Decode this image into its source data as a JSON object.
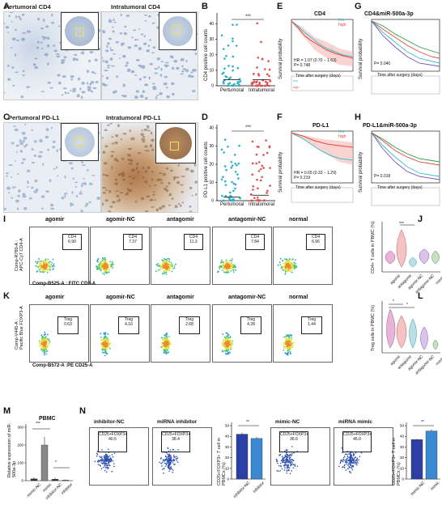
{
  "panels": {
    "A": {
      "letter": "A",
      "titles": [
        "Pertumoral CD4",
        "Intratumoral CD4"
      ]
    },
    "B": {
      "letter": "B",
      "ylabel": "CD4 positive cell counts",
      "xcats": [
        "Pertumoral",
        "Intratumoral"
      ],
      "sig": "***"
    },
    "C": {
      "letter": "C",
      "titles": [
        "Pertumoral PD-L1",
        "Intratumoral PD-L1"
      ]
    },
    "D": {
      "letter": "D",
      "ylabel": "PD-L1 positive cell counts",
      "xcats": [
        "Pertumoral",
        "Intratumoral"
      ],
      "sig": "***"
    },
    "E": {
      "letter": "E",
      "title": "CD4",
      "ylabel": "Survival probability",
      "xlabel": "Time after surgery (days)",
      "legend": [
        "low",
        "high"
      ],
      "hr": "HR = 1.07  (0.70 − 1.63)",
      "p": "P= 0.748"
    },
    "F": {
      "letter": "F",
      "title": "PD-L1",
      "ylabel": "Survival probability",
      "xlabel": "Time after surgery (days)",
      "legend": [
        "low",
        "high"
      ],
      "hr": "HR = 0.65  (0.33 − 1.29)",
      "p": "P= 0.219"
    },
    "G": {
      "letter": "G",
      "title": "CD4&miR-500a-3p",
      "ylabel": "Survival probability",
      "xlabel": "Time after surgery (days)",
      "p": "P= 0.040"
    },
    "H": {
      "letter": "H",
      "title": "PD-L1&miR-500a-3p",
      "ylabel": "Survival probability",
      "xlabel": "Time after surgery (days)",
      "p": "P= 0.018"
    },
    "I": {
      "letter": "I",
      "groups": [
        "agomir",
        "agomir-NC",
        "antagomir",
        "antagomir-NC",
        "normal"
      ],
      "gate": "CD4",
      "values": [
        "6.90",
        "7.37",
        "11.3",
        "7.84",
        "6.96"
      ],
      "ylabel": "Comp-R780-A :\nAPC-Cy7 CD4-A",
      "xlabel": "Comp-B525-A : FITC CD3-A"
    },
    "J": {
      "letter": "J",
      "ylabel": "CD4+ T cells  in PBMC (%)",
      "cats": [
        "agomir",
        "antagomir",
        "agomir-NC",
        "antagomir-NC",
        "normal"
      ],
      "sig": "***"
    },
    "K": {
      "letter": "K",
      "groups": [
        "agomir",
        "agomir-NC",
        "antagomir",
        "antagomir-NC",
        "normal"
      ],
      "gate": "Treg",
      "values": [
        "0.63",
        "4.16",
        "2.68",
        "4.28",
        "1.44"
      ],
      "ylabel": "Comp-V445-A :\nPacific Blue FOXP3-A",
      "xlabel": "Comp-B572-A :PE CD25-A"
    },
    "L": {
      "letter": "L",
      "ylabel": "Treg cells in PBMC (%)",
      "cats": [
        "agomir",
        "antagomir",
        "agomir-NC",
        "antagomir-NC",
        "normal"
      ],
      "sig": [
        "*",
        "*"
      ]
    },
    "M": {
      "letter": "M",
      "title": "PBMC",
      "ylabel": "Relative expression of miR-500a-3p",
      "cats": [
        "mimic-NC",
        "mimic",
        "inhibitor-NC",
        "inhibitor"
      ],
      "sig": [
        "***",
        "*"
      ]
    },
    "N": {
      "letter": "N",
      "flowTitles": [
        "inhibitor-NC",
        "miRNA inhibitor",
        "mimic-NC",
        "miRNA mimic"
      ],
      "gate": "CD25+FOXP3+",
      "values": [
        "40.5",
        "38.4",
        "36.6",
        "45.0"
      ],
      "barY": "CD25+FOXP3+ T cell in PBMCs (%)",
      "barCats1": [
        "inhibitor-NC",
        "inhibitor"
      ],
      "barCats2": [
        "mimic-NC",
        "mimic"
      ],
      "sig1": "**",
      "sig2": "**"
    }
  },
  "chart_data": [
    {
      "type": "scatter",
      "panel": "B",
      "categories": [
        "Pertumoral",
        "Intratumoral"
      ],
      "ylabel": "CD4 positive cell counts",
      "ylim": [
        0,
        45
      ],
      "yticks": [
        0,
        10,
        20,
        30,
        40
      ],
      "series": [
        {
          "name": "Pertumoral",
          "mean": 4
        },
        {
          "name": "Intratumoral",
          "mean": 4
        }
      ]
    },
    {
      "type": "scatter",
      "panel": "D",
      "categories": [
        "Pertumoral",
        "Intratumoral"
      ],
      "ylabel": "PD-L1 positive cell counts",
      "ylim": [
        0,
        40
      ],
      "yticks": [
        0,
        10,
        20,
        30,
        40
      ],
      "series": [
        {
          "name": "Pertumoral",
          "mean": 2
        },
        {
          "name": "Intratumoral",
          "mean": 3
        }
      ]
    },
    {
      "type": "bar",
      "panel": "M",
      "categories": [
        "mimic-NC",
        "mimic",
        "inhibitor-NC",
        "inhibitor"
      ],
      "values": [
        10,
        200,
        8,
        3
      ],
      "ylim": [
        0,
        300
      ],
      "yticks": [
        0,
        100,
        200,
        300
      ]
    },
    {
      "type": "bar",
      "panel": "N1",
      "categories": [
        "inhibitor-NC",
        "inhibitor"
      ],
      "values": [
        42,
        38
      ],
      "ylim": [
        0,
        50
      ],
      "yticks": [
        0,
        10,
        20,
        30,
        40,
        50
      ]
    },
    {
      "type": "bar",
      "panel": "N2",
      "categories": [
        "mimic-NC",
        "mimic"
      ],
      "values": [
        37,
        45
      ],
      "ylim": [
        0,
        50
      ],
      "yticks": [
        0,
        10,
        20,
        30,
        40,
        50
      ]
    }
  ],
  "colors": {
    "teal": "#29b3c9",
    "red": "#e05050",
    "blue": "#2c6db5",
    "km_low": "#3bbfc7",
    "km_high": "#e4473f"
  }
}
